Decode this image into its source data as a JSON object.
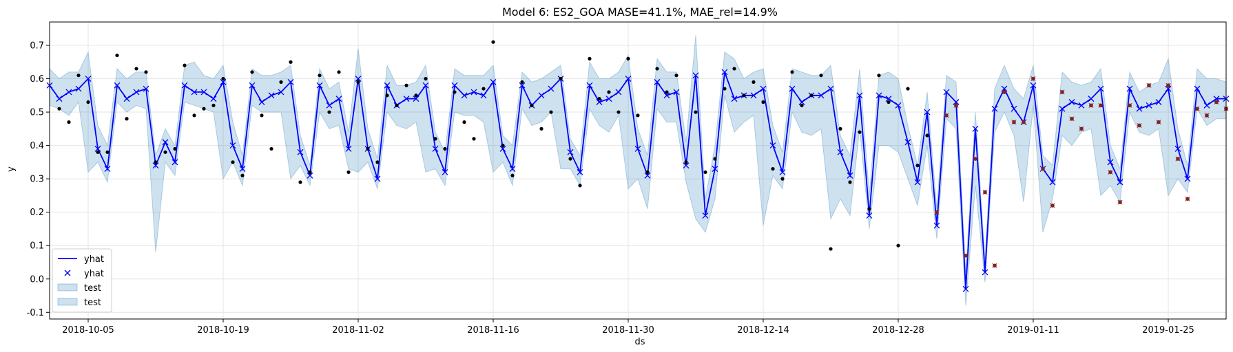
{
  "chart_data": {
    "type": "line",
    "title": "Model 6: ES2_GOA MASE=41.1%, MAE_rel=14.9%",
    "xlabel": "ds",
    "ylabel": "y",
    "x_start": "2018-10-01",
    "x_tick_labels": [
      "2018-10-05",
      "2018-10-19",
      "2018-11-02",
      "2018-11-16",
      "2018-11-30",
      "2018-12-14",
      "2018-12-28",
      "2019-01-11",
      "2019-01-25"
    ],
    "y_tick_labels": [
      "-0.1",
      "0.0",
      "0.1",
      "0.2",
      "0.3",
      "0.4",
      "0.5",
      "0.6",
      "0.7"
    ],
    "xlim": [
      "2018-10-01",
      "2019-01-31"
    ],
    "ylim": [
      -0.12,
      0.77
    ],
    "grid": true,
    "legend_position": "lower-left",
    "legend": [
      {
        "label": "yhat",
        "kind": "line"
      },
      {
        "label": "yhat",
        "kind": "marker-x"
      },
      {
        "label": "test",
        "kind": "band"
      },
      {
        "label": "test",
        "kind": "band"
      }
    ],
    "colors": {
      "yhat": "#0000ff",
      "band": "#1f77b4",
      "actual": "#000000",
      "test_points": "#c00000"
    },
    "yhat": [
      0.58,
      0.54,
      0.56,
      0.57,
      0.6,
      0.39,
      0.33,
      0.58,
      0.54,
      0.56,
      0.57,
      0.34,
      0.41,
      0.35,
      0.58,
      0.56,
      0.56,
      0.54,
      0.59,
      0.4,
      0.33,
      0.58,
      0.53,
      0.55,
      0.56,
      0.59,
      0.38,
      0.31,
      0.58,
      0.52,
      0.54,
      0.39,
      0.6,
      0.39,
      0.3,
      0.58,
      0.52,
      0.54,
      0.54,
      0.58,
      0.39,
      0.32,
      0.58,
      0.55,
      0.56,
      0.55,
      0.59,
      0.39,
      0.33,
      0.58,
      0.52,
      0.55,
      0.57,
      0.6,
      0.38,
      0.32,
      0.58,
      0.53,
      0.54,
      0.56,
      0.6,
      0.39,
      0.31,
      0.59,
      0.55,
      0.56,
      0.34,
      0.61,
      0.19,
      0.33,
      0.62,
      0.54,
      0.55,
      0.55,
      0.57,
      0.4,
      0.32,
      0.57,
      0.53,
      0.55,
      0.55,
      0.57,
      0.38,
      0.31,
      0.55,
      0.19,
      0.55,
      0.54,
      0.52,
      0.41,
      0.29,
      0.5,
      0.16,
      0.56,
      0.53,
      -0.03,
      0.45,
      0.02,
      0.51,
      0.57,
      0.51,
      0.47,
      0.58,
      0.33,
      0.29,
      0.51,
      0.53,
      0.52,
      0.54,
      0.57,
      0.35,
      0.29,
      0.57,
      0.51,
      0.52,
      0.53,
      0.57,
      0.39,
      0.3,
      0.57,
      0.52,
      0.54,
      0.54
    ],
    "band_upper": [
      0.63,
      0.6,
      0.62,
      0.62,
      0.68,
      0.46,
      0.4,
      0.63,
      0.6,
      0.62,
      0.62,
      0.37,
      0.45,
      0.4,
      0.64,
      0.65,
      0.61,
      0.6,
      0.64,
      0.47,
      0.37,
      0.63,
      0.61,
      0.61,
      0.62,
      0.64,
      0.43,
      0.34,
      0.63,
      0.57,
      0.59,
      0.44,
      0.69,
      0.45,
      0.36,
      0.64,
      0.58,
      0.58,
      0.59,
      0.64,
      0.44,
      0.38,
      0.63,
      0.61,
      0.61,
      0.61,
      0.64,
      0.43,
      0.4,
      0.62,
      0.59,
      0.6,
      0.62,
      0.64,
      0.42,
      0.37,
      0.65,
      0.6,
      0.6,
      0.62,
      0.67,
      0.45,
      0.37,
      0.66,
      0.62,
      0.62,
      0.41,
      0.73,
      0.24,
      0.4,
      0.68,
      0.66,
      0.6,
      0.62,
      0.63,
      0.46,
      0.38,
      0.63,
      0.62,
      0.61,
      0.61,
      0.64,
      0.43,
      0.37,
      0.63,
      0.25,
      0.61,
      0.62,
      0.6,
      0.46,
      0.34,
      0.56,
      0.21,
      0.61,
      0.59,
      0.02,
      0.5,
      0.06,
      0.57,
      0.64,
      0.57,
      0.54,
      0.64,
      0.37,
      0.34,
      0.62,
      0.59,
      0.58,
      0.59,
      0.63,
      0.4,
      0.33,
      0.62,
      0.56,
      0.58,
      0.59,
      0.66,
      0.45,
      0.34,
      0.63,
      0.6,
      0.6,
      0.59
    ],
    "band_lower": [
      0.52,
      0.51,
      0.49,
      0.53,
      0.32,
      0.35,
      0.29,
      0.53,
      0.5,
      0.52,
      0.51,
      0.08,
      0.35,
      0.31,
      0.53,
      0.52,
      0.51,
      0.5,
      0.3,
      0.35,
      0.28,
      0.52,
      0.5,
      0.5,
      0.5,
      0.3,
      0.34,
      0.28,
      0.5,
      0.45,
      0.46,
      0.33,
      0.32,
      0.35,
      0.27,
      0.5,
      0.46,
      0.45,
      0.47,
      0.32,
      0.33,
      0.28,
      0.5,
      0.49,
      0.49,
      0.47,
      0.32,
      0.35,
      0.28,
      0.51,
      0.46,
      0.47,
      0.5,
      0.33,
      0.33,
      0.28,
      0.51,
      0.46,
      0.44,
      0.49,
      0.27,
      0.3,
      0.21,
      0.51,
      0.47,
      0.47,
      0.29,
      0.18,
      0.14,
      0.24,
      0.55,
      0.44,
      0.47,
      0.49,
      0.16,
      0.31,
      0.27,
      0.5,
      0.44,
      0.43,
      0.45,
      0.18,
      0.24,
      0.19,
      0.45,
      0.15,
      0.4,
      0.4,
      0.38,
      0.3,
      0.22,
      0.4,
      0.12,
      0.48,
      0.45,
      -0.08,
      0.28,
      -0.01,
      0.44,
      0.5,
      0.43,
      0.23,
      0.52,
      0.14,
      0.24,
      0.43,
      0.4,
      0.44,
      0.45,
      0.25,
      0.28,
      0.23,
      0.5,
      0.44,
      0.43,
      0.45,
      0.25,
      0.3,
      0.26,
      0.51,
      0.46,
      0.48,
      0.48
    ],
    "actual": [
      [
        "2018-10-02",
        0.51
      ],
      [
        "2018-10-03",
        0.47
      ],
      [
        "2018-10-04",
        0.61
      ],
      [
        "2018-10-05",
        0.53
      ],
      [
        "2018-10-06",
        0.38
      ],
      [
        "2018-10-07",
        0.38
      ],
      [
        "2018-10-08",
        0.67
      ],
      [
        "2018-10-09",
        0.48
      ],
      [
        "2018-10-10",
        0.63
      ],
      [
        "2018-10-11",
        0.62
      ],
      [
        "2018-10-12",
        0.35
      ],
      [
        "2018-10-13",
        0.38
      ],
      [
        "2018-10-14",
        0.39
      ],
      [
        "2018-10-15",
        0.64
      ],
      [
        "2018-10-16",
        0.49
      ],
      [
        "2018-10-17",
        0.51
      ],
      [
        "2018-10-18",
        0.52
      ],
      [
        "2018-10-19",
        0.6
      ],
      [
        "2018-10-20",
        0.35
      ],
      [
        "2018-10-21",
        0.31
      ],
      [
        "2018-10-22",
        0.62
      ],
      [
        "2018-10-23",
        0.49
      ],
      [
        "2018-10-24",
        0.39
      ],
      [
        "2018-10-25",
        0.59
      ],
      [
        "2018-10-26",
        0.65
      ],
      [
        "2018-10-27",
        0.29
      ],
      [
        "2018-10-28",
        0.32
      ],
      [
        "2018-10-29",
        0.61
      ],
      [
        "2018-10-30",
        0.5
      ],
      [
        "2018-10-31",
        0.62
      ],
      [
        "2018-11-01",
        0.32
      ],
      [
        "2018-11-02",
        0.59
      ],
      [
        "2018-11-03",
        0.39
      ],
      [
        "2018-11-04",
        0.35
      ],
      [
        "2018-11-05",
        0.55
      ],
      [
        "2018-11-06",
        0.52
      ],
      [
        "2018-11-07",
        0.58
      ],
      [
        "2018-11-08",
        0.55
      ],
      [
        "2018-11-09",
        0.6
      ],
      [
        "2018-11-10",
        0.42
      ],
      [
        "2018-11-11",
        0.39
      ],
      [
        "2018-11-12",
        0.56
      ],
      [
        "2018-11-13",
        0.47
      ],
      [
        "2018-11-14",
        0.42
      ],
      [
        "2018-11-15",
        0.57
      ],
      [
        "2018-11-16",
        0.71
      ],
      [
        "2018-11-17",
        0.4
      ],
      [
        "2018-11-18",
        0.31
      ],
      [
        "2018-11-19",
        0.59
      ],
      [
        "2018-11-20",
        0.52
      ],
      [
        "2018-11-21",
        0.45
      ],
      [
        "2018-11-22",
        0.5
      ],
      [
        "2018-11-23",
        0.6
      ],
      [
        "2018-11-24",
        0.36
      ],
      [
        "2018-11-25",
        0.28
      ],
      [
        "2018-11-26",
        0.66
      ],
      [
        "2018-11-27",
        0.54
      ],
      [
        "2018-11-28",
        0.56
      ],
      [
        "2018-11-29",
        0.5
      ],
      [
        "2018-11-30",
        0.66
      ],
      [
        "2018-12-01",
        0.49
      ],
      [
        "2018-12-02",
        0.32
      ],
      [
        "2018-12-03",
        0.63
      ],
      [
        "2018-12-04",
        0.56
      ],
      [
        "2018-12-05",
        0.61
      ],
      [
        "2018-12-06",
        0.35
      ],
      [
        "2018-12-07",
        0.5
      ],
      [
        "2018-12-08",
        0.32
      ],
      [
        "2018-12-09",
        0.36
      ],
      [
        "2018-12-10",
        0.57
      ],
      [
        "2018-12-11",
        0.63
      ],
      [
        "2018-12-12",
        0.55
      ],
      [
        "2018-12-13",
        0.59
      ],
      [
        "2018-12-14",
        0.53
      ],
      [
        "2018-12-15",
        0.33
      ],
      [
        "2018-12-16",
        0.3
      ],
      [
        "2018-12-17",
        0.62
      ],
      [
        "2018-12-18",
        0.52
      ],
      [
        "2018-12-19",
        0.55
      ],
      [
        "2018-12-20",
        0.61
      ],
      [
        "2018-12-21",
        0.09
      ],
      [
        "2018-12-22",
        0.45
      ],
      [
        "2018-12-23",
        0.29
      ],
      [
        "2018-12-24",
        0.44
      ],
      [
        "2018-12-25",
        0.21
      ],
      [
        "2018-12-26",
        0.61
      ],
      [
        "2018-12-27",
        0.53
      ],
      [
        "2018-12-28",
        0.1
      ],
      [
        "2018-12-29",
        0.57
      ],
      [
        "2018-12-30",
        0.34
      ],
      [
        "2018-12-31",
        0.43
      ]
    ],
    "test_actual": [
      [
        "2019-01-01",
        0.2
      ],
      [
        "2019-01-02",
        0.49
      ],
      [
        "2019-01-03",
        0.52
      ],
      [
        "2019-01-04",
        0.07
      ],
      [
        "2019-01-05",
        0.36
      ],
      [
        "2019-01-06",
        0.26
      ],
      [
        "2019-01-07",
        0.04
      ],
      [
        "2019-01-08",
        0.56
      ],
      [
        "2019-01-09",
        0.47
      ],
      [
        "2019-01-10",
        0.47
      ],
      [
        "2019-01-11",
        0.6
      ],
      [
        "2019-01-12",
        0.33
      ],
      [
        "2019-01-13",
        0.22
      ],
      [
        "2019-01-14",
        0.56
      ],
      [
        "2019-01-15",
        0.48
      ],
      [
        "2019-01-16",
        0.45
      ],
      [
        "2019-01-17",
        0.52
      ],
      [
        "2019-01-18",
        0.52
      ],
      [
        "2019-01-19",
        0.32
      ],
      [
        "2019-01-20",
        0.23
      ],
      [
        "2019-01-21",
        0.52
      ],
      [
        "2019-01-22",
        0.46
      ],
      [
        "2019-01-23",
        0.58
      ],
      [
        "2019-01-24",
        0.47
      ],
      [
        "2019-01-25",
        0.58
      ],
      [
        "2019-01-26",
        0.36
      ],
      [
        "2019-01-27",
        0.24
      ],
      [
        "2019-01-28",
        0.51
      ],
      [
        "2019-01-29",
        0.49
      ],
      [
        "2019-01-30",
        0.53
      ],
      [
        "2019-01-31",
        0.51
      ]
    ]
  }
}
